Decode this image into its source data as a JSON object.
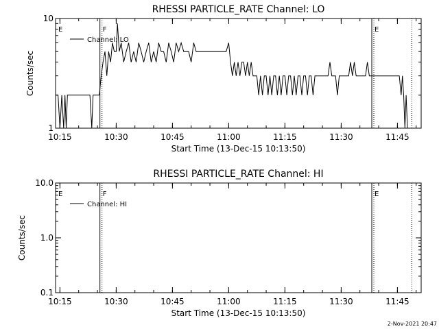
{
  "chart_data": [
    {
      "type": "line",
      "title": "RHESSI PARTICLE_RATE Channel: LO",
      "xlabel": "Start Time (13-Dec-15 10:13:50)",
      "ylabel": "Counts/sec",
      "yscale": "log",
      "ylim": [
        1,
        10
      ],
      "xlim": [
        "10:13:50",
        "11:51:20"
      ],
      "x_ticks": [
        "10:15",
        "10:30",
        "10:45",
        "11:00",
        "11:15",
        "11:30",
        "11:45"
      ],
      "y_ticks": [
        "1",
        "10"
      ],
      "legend": {
        "location": "top-left",
        "entries": [
          "Channel: LO"
        ]
      },
      "grid": false,
      "markers": [
        {
          "label": "E",
          "x": "10:13:50",
          "style": "none"
        },
        {
          "label": "F",
          "x": "10:25:40",
          "style": "solid-dotted"
        },
        {
          "label": "E",
          "x": "11:38:10",
          "style": "solid-dotted"
        },
        {
          "label": "",
          "x": "11:48:50",
          "style": "dotted"
        }
      ],
      "series": [
        {
          "name": "Channel: LO",
          "x": [
            "10:13:50",
            "10:14:30",
            "10:15:00",
            "10:15:30",
            "10:16:00",
            "10:16:20",
            "10:16:40",
            "10:17:00",
            "10:17:30",
            "10:18:00",
            "10:19:00",
            "10:20:00",
            "10:21:00",
            "10:22:00",
            "10:23:00",
            "10:23:30",
            "10:23:50",
            "10:24:20",
            "10:24:50",
            "10:25:30",
            "10:26:00",
            "10:26:30",
            "10:27:00",
            "10:27:30",
            "10:28:00",
            "10:28:30",
            "10:29:00",
            "10:29:30",
            "10:30:00",
            "10:30:20",
            "10:30:50",
            "10:31:20",
            "10:32:00",
            "10:32:40",
            "10:33:20",
            "10:34:00",
            "10:34:40",
            "10:35:20",
            "10:36:00",
            "10:36:40",
            "10:37:20",
            "10:38:00",
            "10:38:40",
            "10:39:20",
            "10:40:00",
            "10:40:40",
            "10:41:20",
            "10:42:00",
            "10:42:40",
            "10:43:20",
            "10:44:00",
            "10:44:40",
            "10:45:20",
            "10:46:00",
            "10:46:40",
            "10:47:20",
            "10:48:00",
            "10:48:40",
            "10:49:20",
            "10:50:00",
            "10:50:40",
            "10:51:20",
            "10:52:00",
            "10:52:40",
            "10:53:20",
            "10:54:00",
            "10:54:40",
            "10:55:20",
            "10:56:00",
            "10:56:40",
            "10:57:20",
            "10:58:00",
            "10:58:40",
            "10:59:20",
            "11:00:00",
            "11:00:30",
            "11:01:00",
            "11:01:30",
            "11:02:00",
            "11:02:30",
            "11:03:00",
            "11:03:30",
            "11:04:00",
            "11:04:30",
            "11:05:00",
            "11:05:30",
            "11:06:00",
            "11:06:30",
            "11:07:00",
            "11:07:30",
            "11:08:00",
            "11:08:30",
            "11:09:00",
            "11:09:30",
            "11:10:00",
            "11:10:30",
            "11:11:00",
            "11:11:30",
            "11:12:00",
            "11:12:30",
            "11:13:00",
            "11:13:30",
            "11:14:00",
            "11:14:30",
            "11:15:00",
            "11:15:30",
            "11:16:00",
            "11:16:30",
            "11:17:00",
            "11:17:30",
            "11:18:00",
            "11:18:30",
            "11:19:00",
            "11:19:30",
            "11:20:00",
            "11:20:30",
            "11:21:00",
            "11:21:30",
            "11:22:00",
            "11:22:30",
            "11:23:00",
            "11:23:30",
            "11:24:00",
            "11:24:30",
            "11:25:00",
            "11:25:30",
            "11:26:00",
            "11:26:30",
            "11:27:00",
            "11:27:30",
            "11:28:00",
            "11:28:30",
            "11:29:00",
            "11:29:30",
            "11:30:00",
            "11:30:30",
            "11:31:00",
            "11:31:30",
            "11:32:00",
            "11:32:30",
            "11:33:00",
            "11:33:30",
            "11:34:00",
            "11:34:30",
            "11:35:00",
            "11:35:30",
            "11:36:00",
            "11:36:30",
            "11:37:00",
            "11:37:30",
            "11:38:00",
            "11:38:30",
            "11:39:00",
            "11:40:00",
            "11:41:00",
            "11:42:00",
            "11:43:00",
            "11:44:00",
            "11:45:00",
            "11:45:30",
            "11:46:00",
            "11:46:20",
            "11:46:40",
            "11:47:00",
            "11:47:20",
            "11:47:40"
          ],
          "values": [
            2,
            2,
            1,
            2,
            1,
            2,
            1,
            2,
            2,
            2,
            2,
            2,
            2,
            2,
            2,
            1,
            2,
            2,
            2,
            2,
            3,
            4,
            5,
            3,
            5,
            4,
            6,
            5,
            5,
            9,
            5,
            6,
            4,
            5,
            6,
            4,
            5,
            4,
            6,
            5,
            4,
            5,
            6,
            4,
            5,
            4,
            6,
            5,
            5,
            4,
            6,
            5,
            4,
            6,
            5,
            6,
            5,
            5,
            5,
            4,
            6,
            5,
            5,
            5,
            5,
            5,
            5,
            5,
            5,
            5,
            5,
            5,
            5,
            5,
            6,
            4,
            3,
            4,
            3,
            4,
            3,
            4,
            4,
            3,
            4,
            3,
            4,
            3,
            3,
            3,
            2,
            3,
            2,
            3,
            3,
            2,
            3,
            2,
            3,
            3,
            2,
            3,
            2,
            3,
            3,
            2,
            3,
            3,
            2,
            3,
            2,
            3,
            3,
            2,
            3,
            3,
            2,
            3,
            3,
            2,
            3,
            3,
            3,
            3,
            3,
            3,
            3,
            3,
            4,
            3,
            3,
            3,
            2,
            3,
            3,
            3,
            3,
            3,
            3,
            4,
            3,
            4,
            3,
            3,
            3,
            3,
            3,
            3,
            4,
            3,
            3,
            3,
            3,
            3,
            3,
            3,
            3,
            3,
            3,
            3,
            2,
            3,
            2,
            1,
            2,
            1
          ]
        }
      ]
    },
    {
      "type": "line",
      "title": "RHESSI PARTICLE_RATE Channel: HI",
      "xlabel": "Start Time (13-Dec-15 10:13:50)",
      "ylabel": "Counts/sec",
      "yscale": "log",
      "ylim": [
        0.1,
        10
      ],
      "xlim": [
        "10:13:50",
        "11:51:20"
      ],
      "x_ticks": [
        "10:15",
        "10:30",
        "10:45",
        "11:00",
        "11:15",
        "11:30",
        "11:45"
      ],
      "y_ticks": [
        "0.1",
        "1.0",
        "10.0"
      ],
      "legend": {
        "location": "top-left",
        "entries": [
          "Channel: HI"
        ]
      },
      "grid": false,
      "markers": [
        {
          "label": "E",
          "x": "10:13:50",
          "style": "none"
        },
        {
          "label": "F",
          "x": "10:25:40",
          "style": "solid-dotted"
        },
        {
          "label": "E",
          "x": "11:38:10",
          "style": "solid-dotted"
        },
        {
          "label": "",
          "x": "11:48:50",
          "style": "dotted"
        }
      ],
      "series": [
        {
          "name": "Channel: HI",
          "x": [],
          "values": []
        }
      ]
    }
  ],
  "footer": {
    "timestamp": "2-Nov-2021 20:47"
  }
}
